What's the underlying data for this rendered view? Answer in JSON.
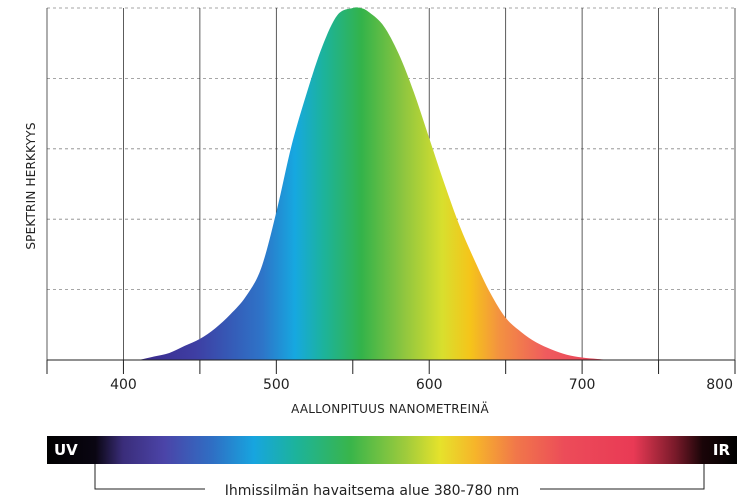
{
  "chart_data": {
    "type": "area",
    "title": "",
    "xlabel": "AALLONPITUUS NANOMETREINÄ",
    "ylabel": "SPEKTRIN HERKKYYS",
    "xlim": [
      350,
      800
    ],
    "ylim": [
      0,
      1
    ],
    "x_ticks": [
      400,
      500,
      600,
      700,
      800
    ],
    "grid": true,
    "series": [
      {
        "x": [
          410,
          420,
          430,
          440,
          450,
          460,
          470,
          480,
          490,
          500,
          510,
          520,
          530,
          540,
          550,
          555,
          560,
          570,
          580,
          590,
          600,
          610,
          620,
          630,
          640,
          650,
          660,
          670,
          680,
          690,
          700,
          710,
          720
        ],
        "values": [
          0.0,
          0.01,
          0.02,
          0.04,
          0.06,
          0.09,
          0.13,
          0.18,
          0.26,
          0.42,
          0.61,
          0.76,
          0.89,
          0.98,
          1.0,
          1.0,
          0.99,
          0.95,
          0.87,
          0.76,
          0.63,
          0.5,
          0.38,
          0.28,
          0.19,
          0.12,
          0.08,
          0.05,
          0.03,
          0.015,
          0.007,
          0.003,
          0.0
        ]
      }
    ],
    "gradient_colors": [
      "#3b2a8c",
      "#3e3ea3",
      "#2e74c8",
      "#16a8e0",
      "#1cb39c",
      "#33b34a",
      "#8fc63f",
      "#d8df2e",
      "#f5c41a",
      "#f39240",
      "#ef5b5e",
      "#e93a55"
    ]
  },
  "spectrum_band": {
    "left_label": "UV",
    "right_label": "IR",
    "range_label": "Ihmissilmän havaitsema alue 380-780 nm"
  }
}
